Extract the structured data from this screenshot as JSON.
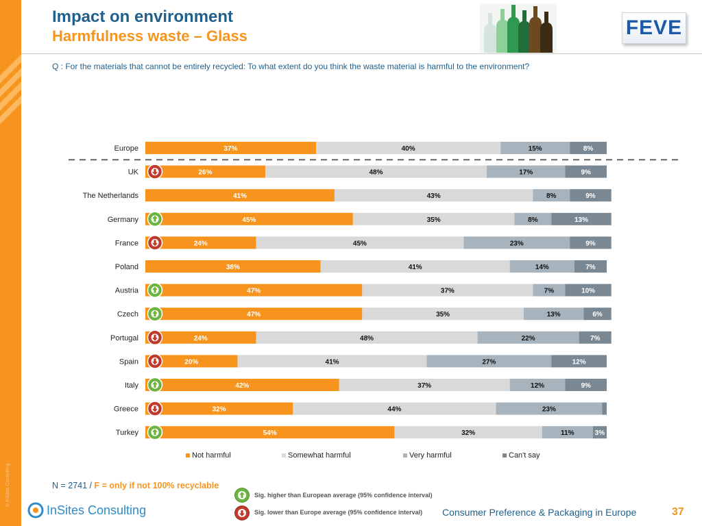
{
  "header": {
    "title": "Impact on environment",
    "subtitle": "Harmfulness waste – Glass",
    "logo_text": "FEVE"
  },
  "question": "Q : For the materials that cannot be entirely recycled: To what extent do you think the waste material is harmful to the environment?",
  "colors": {
    "accent": "#f7941d",
    "title_blue": "#1f5f8b",
    "not_harmful": "#f7941d",
    "somewhat_harmful": "#d9d9d9",
    "very_harmful": "#a7b3bd",
    "cant_say": "#7a8893",
    "sig_higher": "#6db33f",
    "sig_lower": "#c0392b"
  },
  "chart_data": {
    "type": "bar",
    "orientation": "horizontal",
    "stacked": true,
    "xlim": [
      0,
      100
    ],
    "legend_position": "bottom",
    "categories": [
      "Europe",
      "UK",
      "The Netherlands",
      "Germany",
      "France",
      "Poland",
      "Austria",
      "Czech",
      "Portugal",
      "Spain",
      "Italy",
      "Greece",
      "Turkey"
    ],
    "series": [
      {
        "name": "Not harmful",
        "values": [
          37,
          26,
          41,
          45,
          24,
          38,
          47,
          47,
          24,
          20,
          42,
          32,
          54
        ]
      },
      {
        "name": "Somewhat harmful",
        "values": [
          40,
          48,
          43,
          35,
          45,
          41,
          37,
          35,
          48,
          41,
          37,
          44,
          32
        ]
      },
      {
        "name": "Very harmful",
        "values": [
          15,
          17,
          8,
          8,
          23,
          14,
          7,
          13,
          22,
          27,
          12,
          23,
          11
        ]
      },
      {
        "name": "Can't say",
        "values": [
          8,
          9,
          9,
          13,
          9,
          7,
          10,
          6,
          7,
          12,
          9,
          1,
          3
        ]
      }
    ],
    "labels": [
      [
        "37%",
        "40%",
        "15%",
        "8%"
      ],
      [
        "26%",
        "48%",
        "17%",
        "9%"
      ],
      [
        "41%",
        "43%",
        "8%",
        "9%"
      ],
      [
        "45%",
        "35%",
        "8%",
        "13%"
      ],
      [
        "24%",
        "45%",
        "23%",
        "9%"
      ],
      [
        "38%",
        "41%",
        "14%",
        "7%"
      ],
      [
        "47%",
        "37%",
        "7%",
        "10%"
      ],
      [
        "47%",
        "35%",
        "13%",
        "6%"
      ],
      [
        "24%",
        "48%",
        "22%",
        "7%"
      ],
      [
        "20%",
        "41%",
        "27%",
        "12%"
      ],
      [
        "42%",
        "37%",
        "12%",
        "9%"
      ],
      [
        "32%",
        "44%",
        "23%",
        ""
      ],
      [
        "54%",
        "32%",
        "11%",
        "3%"
      ]
    ],
    "significance": [
      "none",
      "lower",
      "none",
      "higher",
      "lower",
      "none",
      "higher",
      "higher",
      "lower",
      "lower",
      "higher",
      "lower",
      "higher"
    ],
    "legend": [
      "Not harmful",
      "Somewhat harmful",
      "Very harmful",
      "Can't say"
    ]
  },
  "footer": {
    "n_label": "N =  2741 / ",
    "n_note": "F = only if not 100% recyclable",
    "sig_higher_text": "Sig. higher than European average (95% confidence interval)",
    "sig_lower_text": "Sig. lower than Europe average (95% confidence interval)",
    "company": "InSites Consulting",
    "report_title": "Consumer Preference & Packaging in Europe",
    "page_number": "37",
    "copyright": "© InSites Consulting"
  }
}
